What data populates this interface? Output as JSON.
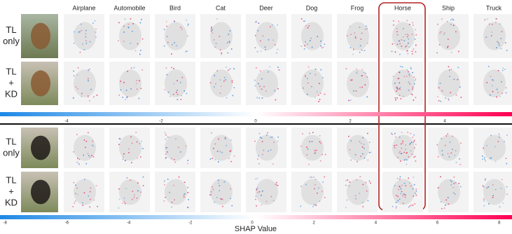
{
  "columns": [
    "Airplane",
    "Automobile",
    "Bird",
    "Cat",
    "Deer",
    "Dog",
    "Frog",
    "Horse",
    "Ship",
    "Truck"
  ],
  "sections": [
    {
      "rows": [
        {
          "label": [
            "TL",
            "only"
          ]
        },
        {
          "label": [
            "TL",
            "+",
            "KD"
          ]
        }
      ],
      "colorbar": {
        "ticks": [
          -4,
          -2,
          0,
          2,
          4
        ]
      }
    },
    {
      "rows": [
        {
          "label": [
            "TL",
            "only"
          ]
        },
        {
          "label": [
            "TL",
            "+",
            "KD"
          ]
        }
      ],
      "colorbar": {
        "ticks": [
          -8,
          -6,
          -4,
          -2,
          0,
          2,
          4,
          6,
          8
        ]
      }
    }
  ],
  "colorbar_label": "SHAP Value"
}
